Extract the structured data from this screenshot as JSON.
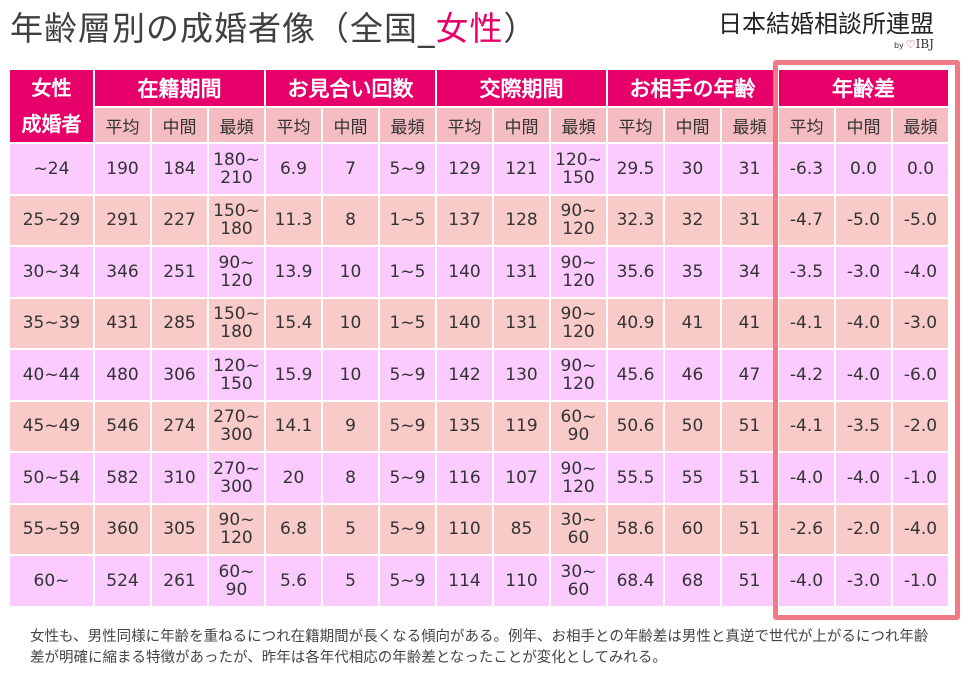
{
  "title_prefix": "年齢層別の成婚者像（全国_",
  "title_highlight": "女性",
  "title_suffix": "）",
  "brand": {
    "name": "日本結婚相談所連盟",
    "by": "by",
    "heart": "♡",
    "ibj": "IBJ"
  },
  "table": {
    "corner_top": "女性",
    "corner_bottom": "成婚者",
    "groups": [
      "在籍期間",
      "お見合い回数",
      "交際期間",
      "お相手の年齢",
      "年齢差"
    ],
    "subheaders": [
      "平均",
      "中間",
      "最頻"
    ],
    "rows": [
      {
        "age": "~24",
        "cells": [
          "190",
          "184",
          "180~\n210",
          "6.9",
          "7",
          "5~9",
          "129",
          "121",
          "120~\n150",
          "29.5",
          "30",
          "31",
          "-6.3",
          "0.0",
          "0.0"
        ]
      },
      {
        "age": "25~29",
        "cells": [
          "291",
          "227",
          "150~\n180",
          "11.3",
          "8",
          "1~5",
          "137",
          "128",
          "90~\n120",
          "32.3",
          "32",
          "31",
          "-4.7",
          "-5.0",
          "-5.0"
        ]
      },
      {
        "age": "30~34",
        "cells": [
          "346",
          "251",
          "90~\n120",
          "13.9",
          "10",
          "1~5",
          "140",
          "131",
          "90~\n120",
          "35.6",
          "35",
          "34",
          "-3.5",
          "-3.0",
          "-4.0"
        ]
      },
      {
        "age": "35~39",
        "cells": [
          "431",
          "285",
          "150~\n180",
          "15.4",
          "10",
          "1~5",
          "140",
          "131",
          "90~\n120",
          "40.9",
          "41",
          "41",
          "-4.1",
          "-4.0",
          "-3.0"
        ]
      },
      {
        "age": "40~44",
        "cells": [
          "480",
          "306",
          "120~\n150",
          "15.9",
          "10",
          "5~9",
          "142",
          "130",
          "90~\n120",
          "45.6",
          "46",
          "47",
          "-4.2",
          "-4.0",
          "-6.0"
        ]
      },
      {
        "age": "45~49",
        "cells": [
          "546",
          "274",
          "270~\n300",
          "14.1",
          "9",
          "5~9",
          "135",
          "119",
          "60~\n90",
          "50.6",
          "50",
          "51",
          "-4.1",
          "-3.5",
          "-2.0"
        ]
      },
      {
        "age": "50~54",
        "cells": [
          "582",
          "310",
          "270~\n300",
          "20",
          "8",
          "5~9",
          "116",
          "107",
          "90~\n120",
          "55.5",
          "55",
          "51",
          "-4.0",
          "-4.0",
          "-1.0"
        ]
      },
      {
        "age": "55~59",
        "cells": [
          "360",
          "305",
          "90~\n120",
          "6.8",
          "5",
          "5~9",
          "110",
          "85",
          "30~\n60",
          "58.6",
          "60",
          "51",
          "-2.6",
          "-2.0",
          "-4.0"
        ]
      },
      {
        "age": "60~",
        "cells": [
          "524",
          "261",
          "60~\n90",
          "5.6",
          "5",
          "5~9",
          "114",
          "110",
          "30~\n60",
          "68.4",
          "68",
          "51",
          "-4.0",
          "-3.0",
          "-1.0"
        ]
      }
    ]
  },
  "footnote": "女性も、男性同様に年齢を重ねるにつれ在籍期間が長くなる傾向がある。例年、お相手との年齢差は男性と真逆で世代が上がるにつれ年齢差が明確に縮まる特徴があったが、昨年は各年代相応の年齢差となったことが変化としてみれる。",
  "colors": {
    "accent_pink": "#e8006a",
    "subheader_bg": "#f5bcc2",
    "row_pink": "#fbcaff",
    "row_salmon": "#f8cac8",
    "highlight_border": "#f07a86"
  }
}
